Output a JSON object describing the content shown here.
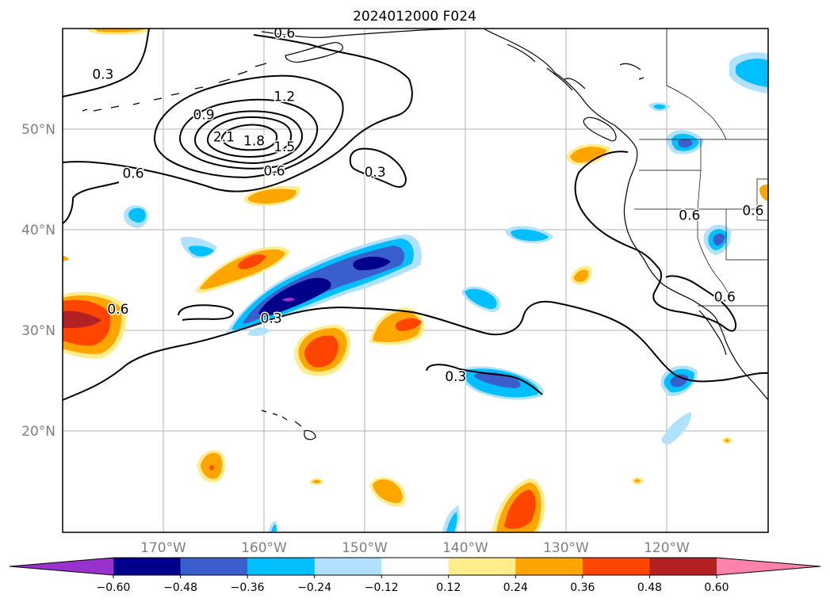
{
  "title": "2024012000 F024",
  "map": {
    "lat_labels": [
      "50°N",
      "40°N",
      "30°N",
      "20°N"
    ],
    "lon_labels": [
      "170°W",
      "160°W",
      "150°W",
      "140°W",
      "130°W",
      "120°W"
    ],
    "extent": {
      "lon_min": -180,
      "lon_max": -110,
      "lat_min": 10,
      "lat_max": 60
    }
  },
  "contour_labels": [
    {
      "text": "0.6",
      "lon": -158,
      "lat": 59.1
    },
    {
      "text": "0.3",
      "lon": -176,
      "lat": 55.0
    },
    {
      "text": "1.2",
      "lon": -158,
      "lat": 52.8
    },
    {
      "text": "0.9",
      "lon": -166,
      "lat": 51.0
    },
    {
      "text": "2.1",
      "lon": -164,
      "lat": 48.8
    },
    {
      "text": "1.8",
      "lon": -161,
      "lat": 48.4
    },
    {
      "text": "1.5",
      "lon": -158,
      "lat": 47.8
    },
    {
      "text": "0.6",
      "lon": -173,
      "lat": 45.2
    },
    {
      "text": "0.6",
      "lon": -159,
      "lat": 45.4
    },
    {
      "text": "0.3",
      "lon": -149,
      "lat": 45.3
    },
    {
      "text": "0.6",
      "lon": -117.8,
      "lat": 41.0
    },
    {
      "text": "0.6",
      "lon": -111.5,
      "lat": 41.5
    },
    {
      "text": "0.6",
      "lon": -174.5,
      "lat": 31.7
    },
    {
      "text": "0.3",
      "lon": -159.3,
      "lat": 30.8
    },
    {
      "text": "0.6",
      "lon": -114.3,
      "lat": 32.9
    },
    {
      "text": "0.3",
      "lon": -141.0,
      "lat": 25.0
    }
  ],
  "colorbar": {
    "labels": [
      "−0.60",
      "−0.48",
      "−0.36",
      "−0.24",
      "−0.12",
      "0.12",
      "0.24",
      "0.36",
      "0.48",
      "0.60"
    ],
    "colors": [
      "#9932cc",
      "#00008b",
      "#3a5fcd",
      "#00bfff",
      "#b0e2ff",
      "#ffffff",
      "#ffec8b",
      "#ffa500",
      "#ff4500",
      "#b22222",
      "#ff82ab"
    ]
  }
}
